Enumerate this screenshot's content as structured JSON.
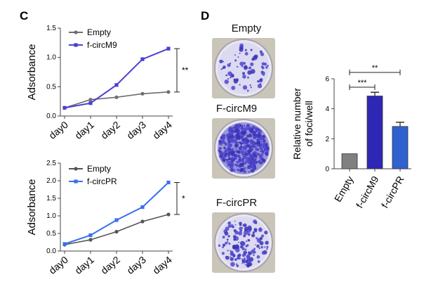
{
  "panels": {
    "c_label": "C",
    "d_label": "D"
  },
  "chart_data": [
    {
      "id": "top-line",
      "type": "line",
      "categories": [
        "day0",
        "day1",
        "day2",
        "day3",
        "day4"
      ],
      "ylabel": "Adsorbance",
      "ylim": [
        0,
        1.5
      ],
      "yticks": [
        "0.0",
        "0.5",
        "1.0",
        "1.5"
      ],
      "series": [
        {
          "name": "Empty",
          "color": "#6e6e6e",
          "values": [
            0.14,
            0.28,
            0.32,
            0.38,
            0.41
          ]
        },
        {
          "name": "f-circM9",
          "color": "#4a3fd4",
          "values": [
            0.14,
            0.22,
            0.53,
            0.97,
            1.15
          ]
        }
      ],
      "significance": "**"
    },
    {
      "id": "bottom-line",
      "type": "line",
      "categories": [
        "day0",
        "day1",
        "day2",
        "day3",
        "day4"
      ],
      "ylabel": "Adsorbance",
      "ylim": [
        0,
        2.5
      ],
      "yticks": [
        "0.0",
        "0.5",
        "1.0",
        "1.5",
        "2.0",
        "2.5"
      ],
      "series": [
        {
          "name": "Empty",
          "color": "#555555",
          "values": [
            0.18,
            0.32,
            0.55,
            0.84,
            1.04
          ]
        },
        {
          "name": "f-circPR",
          "color": "#3a6ff0",
          "values": [
            0.2,
            0.45,
            0.88,
            1.25,
            1.95
          ]
        }
      ],
      "significance": "*"
    },
    {
      "id": "bar",
      "type": "bar",
      "categories": [
        "Empty",
        "f-circM9",
        "f-circPR"
      ],
      "values": [
        1.0,
        4.85,
        2.82
      ],
      "errors": [
        0.0,
        0.25,
        0.28
      ],
      "colors": [
        "#808080",
        "#2e27b5",
        "#2f62cf"
      ],
      "ylabel": "Relative number of foci/well",
      "ylabel_lines": [
        "Relative number",
        "of foci/well"
      ],
      "ylim": [
        0,
        6
      ],
      "yticks": [
        "0",
        "2",
        "4",
        "6"
      ],
      "significance": [
        {
          "from": 0,
          "to": 1,
          "label": "***"
        },
        {
          "from": 0,
          "to": 2,
          "label": "**"
        }
      ]
    }
  ],
  "plates": [
    {
      "label": "Empty",
      "density": "sparse"
    },
    {
      "label": "F-circM9",
      "density": "dense"
    },
    {
      "label": "F-circPR",
      "density": "medium"
    }
  ]
}
